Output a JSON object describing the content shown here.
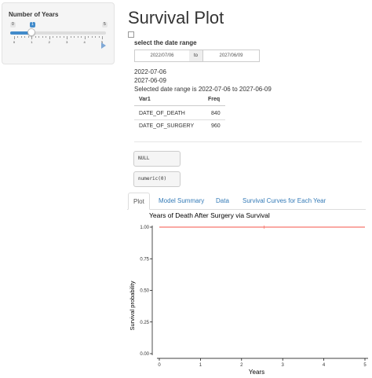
{
  "sidebar": {
    "slider": {
      "label": "Number of Years",
      "min_label": "0",
      "max_label": "5",
      "value_label": "1",
      "min": 0,
      "max": 5,
      "value": 1,
      "tick_labels": [
        "0",
        "1",
        "2",
        "3",
        "4",
        "5"
      ]
    }
  },
  "main": {
    "title": "Survival Plot",
    "date_range": {
      "label": "select the date range",
      "start": "2022/07/06",
      "separator": "to",
      "end": "2027/06/09"
    },
    "output_lines": [
      "2022-07-06",
      "2027-06-09",
      "Selected date range is 2022-07-06 to 2027-06-09"
    ],
    "freq_table": {
      "headers": [
        "Var1",
        "Freq"
      ],
      "rows": [
        [
          "DATE_OF_DEATH",
          "840"
        ],
        [
          "DATE_OF_SURGERY",
          "960"
        ]
      ]
    },
    "verbatim": [
      "NULL",
      "numeric(0)"
    ],
    "tabs": [
      "Plot",
      "Model Summary",
      "Data",
      "Survival Curves for Each Year"
    ],
    "active_tab": "Plot"
  },
  "chart_data": {
    "type": "line",
    "title": "Years of Death After Surgery via Survival",
    "xlabel": "Years",
    "ylabel": "Survival probability",
    "xlim": [
      0,
      5
    ],
    "ylim": [
      0,
      1
    ],
    "x_ticks": [
      "0",
      "1",
      "2",
      "3",
      "4",
      "5"
    ],
    "y_ticks": [
      "0.00",
      "0.25",
      "0.50",
      "0.75",
      "1.00"
    ],
    "series": [
      {
        "color": "#f8766d",
        "x": [
          0,
          5
        ],
        "y": [
          1.0,
          1.0
        ]
      }
    ],
    "censor_marks": [
      {
        "x": 2.55,
        "y": 1.0
      }
    ],
    "grid": false
  }
}
